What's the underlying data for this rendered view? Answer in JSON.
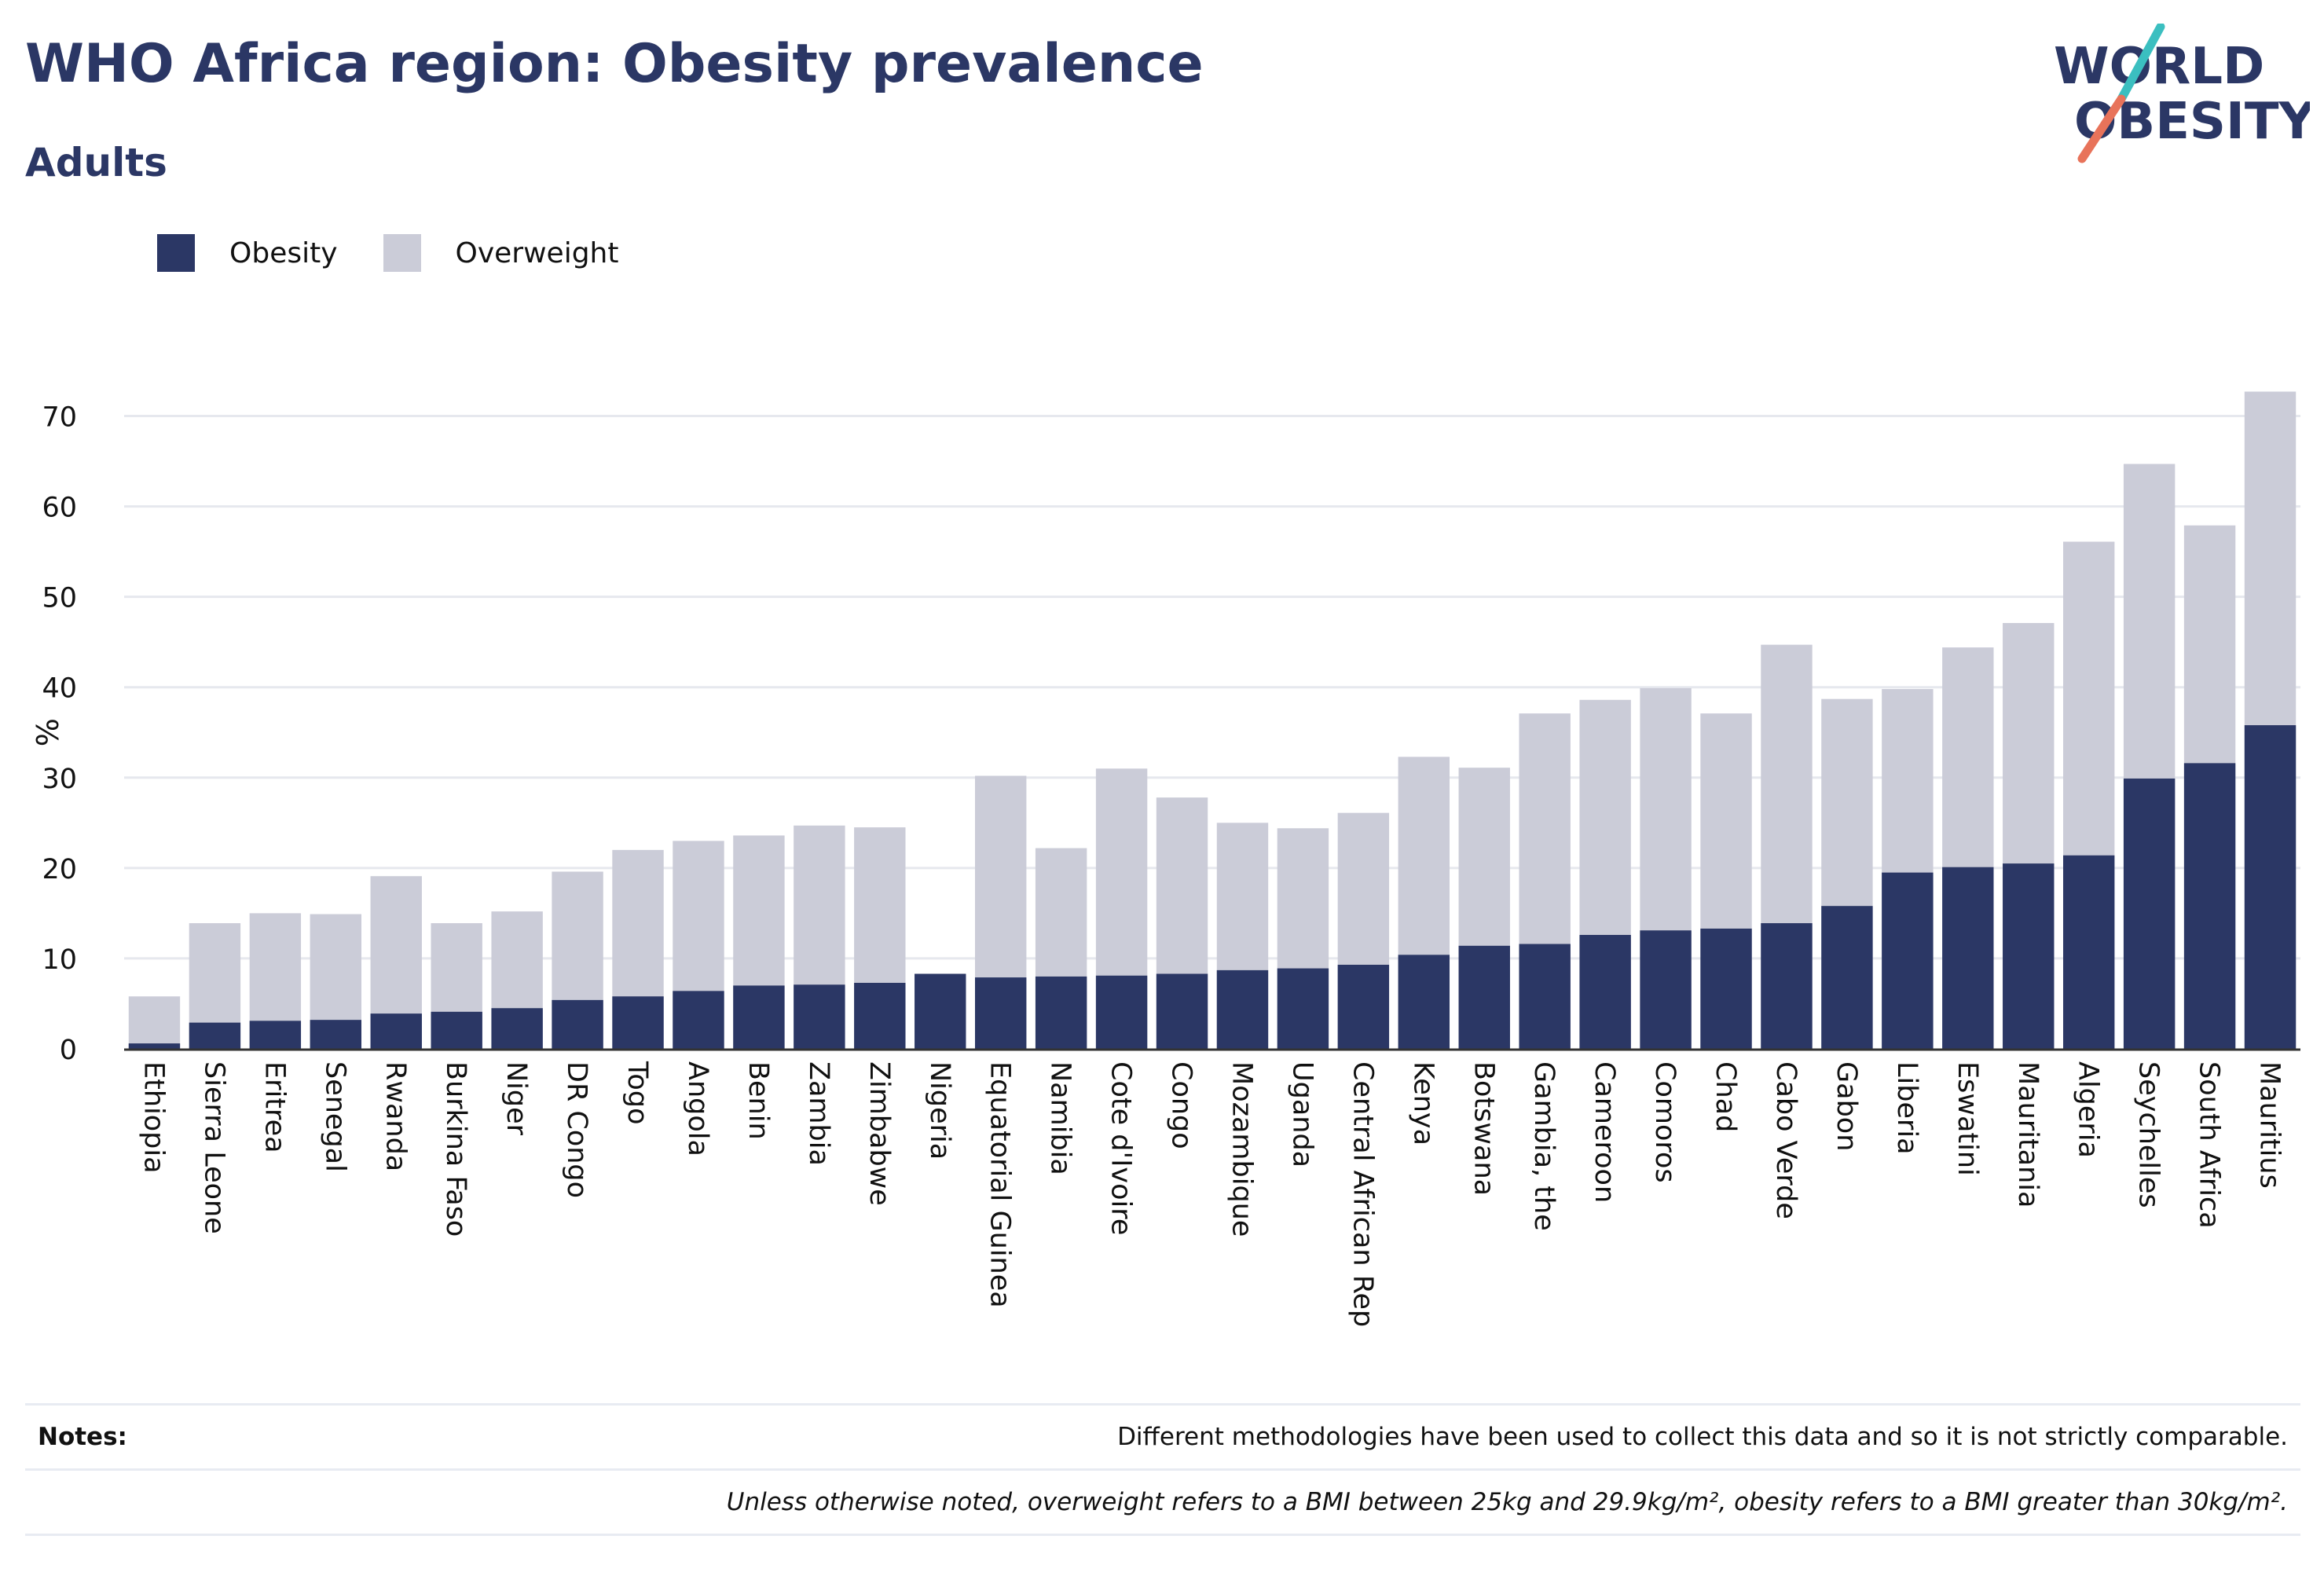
{
  "header": {
    "title": "WHO Africa region: Obesity prevalence",
    "subtitle": "Adults"
  },
  "logo": {
    "line1": "WORLD",
    "line2": "OBESITY",
    "colors": {
      "text": "#2b3765",
      "slash_top": "#3bbfc0",
      "slash_bottom": "#e8735a"
    }
  },
  "legend": [
    {
      "label": "Obesity",
      "color": "#2b3765"
    },
    {
      "label": "Overweight",
      "color": "#cbccd8"
    }
  ],
  "chart_data": {
    "type": "bar",
    "stacked": false,
    "overlapped": true,
    "ylabel": "%",
    "ylim": [
      0,
      73
    ],
    "yticks": [
      0,
      10,
      20,
      30,
      40,
      50,
      60,
      70
    ],
    "grid": true,
    "legend_position": "top-left",
    "categories": [
      "Ethiopia",
      "Sierra Leone",
      "Eritrea",
      "Senegal",
      "Rwanda",
      "Burkina Faso",
      "Niger",
      "DR Congo",
      "Togo",
      "Angola",
      "Benin",
      "Zambia",
      "Zimbabwe",
      "Nigeria",
      "Equatorial Guinea",
      "Namibia",
      "Cote d'Ivoire",
      "Congo",
      "Mozambique",
      "Uganda",
      "Central African Rep",
      "Kenya",
      "Botswana",
      "Gambia, the",
      "Cameroon",
      "Comoros",
      "Chad",
      "Cabo Verde",
      "Gabon",
      "Liberia",
      "Eswatini",
      "Mauritania",
      "Algeria",
      "Seychelles",
      "South Africa",
      "Mauritius"
    ],
    "series": [
      {
        "name": "Overweight",
        "color": "#cbccd8",
        "values": [
          5.8,
          13.9,
          15.0,
          14.9,
          19.1,
          13.9,
          15.2,
          19.6,
          22.0,
          23.0,
          23.6,
          24.7,
          24.5,
          null,
          30.2,
          22.2,
          31.0,
          27.8,
          25.0,
          24.4,
          26.1,
          32.3,
          31.1,
          37.1,
          38.6,
          39.9,
          37.1,
          44.7,
          38.7,
          39.8,
          44.4,
          47.1,
          56.1,
          64.7,
          57.9,
          72.7
        ]
      },
      {
        "name": "Obesity",
        "color": "#2b3765",
        "values": [
          0.6,
          2.9,
          3.1,
          3.2,
          3.9,
          4.1,
          4.5,
          5.4,
          5.8,
          6.4,
          7.0,
          7.1,
          7.3,
          8.3,
          7.9,
          8.0,
          8.1,
          8.3,
          8.7,
          8.9,
          9.3,
          10.4,
          11.4,
          11.6,
          12.6,
          13.1,
          13.3,
          13.9,
          15.8,
          19.5,
          20.1,
          20.5,
          21.4,
          29.9,
          31.6,
          35.8
        ]
      }
    ]
  },
  "notes": {
    "label": "Notes:",
    "line1": "Different methodologies have been used to collect this data and so it is not strictly comparable.",
    "line2": "Unless otherwise noted, overweight refers to a BMI between 25kg and 29.9kg/m², obesity refers to a BMI greater than 30kg/m²."
  }
}
